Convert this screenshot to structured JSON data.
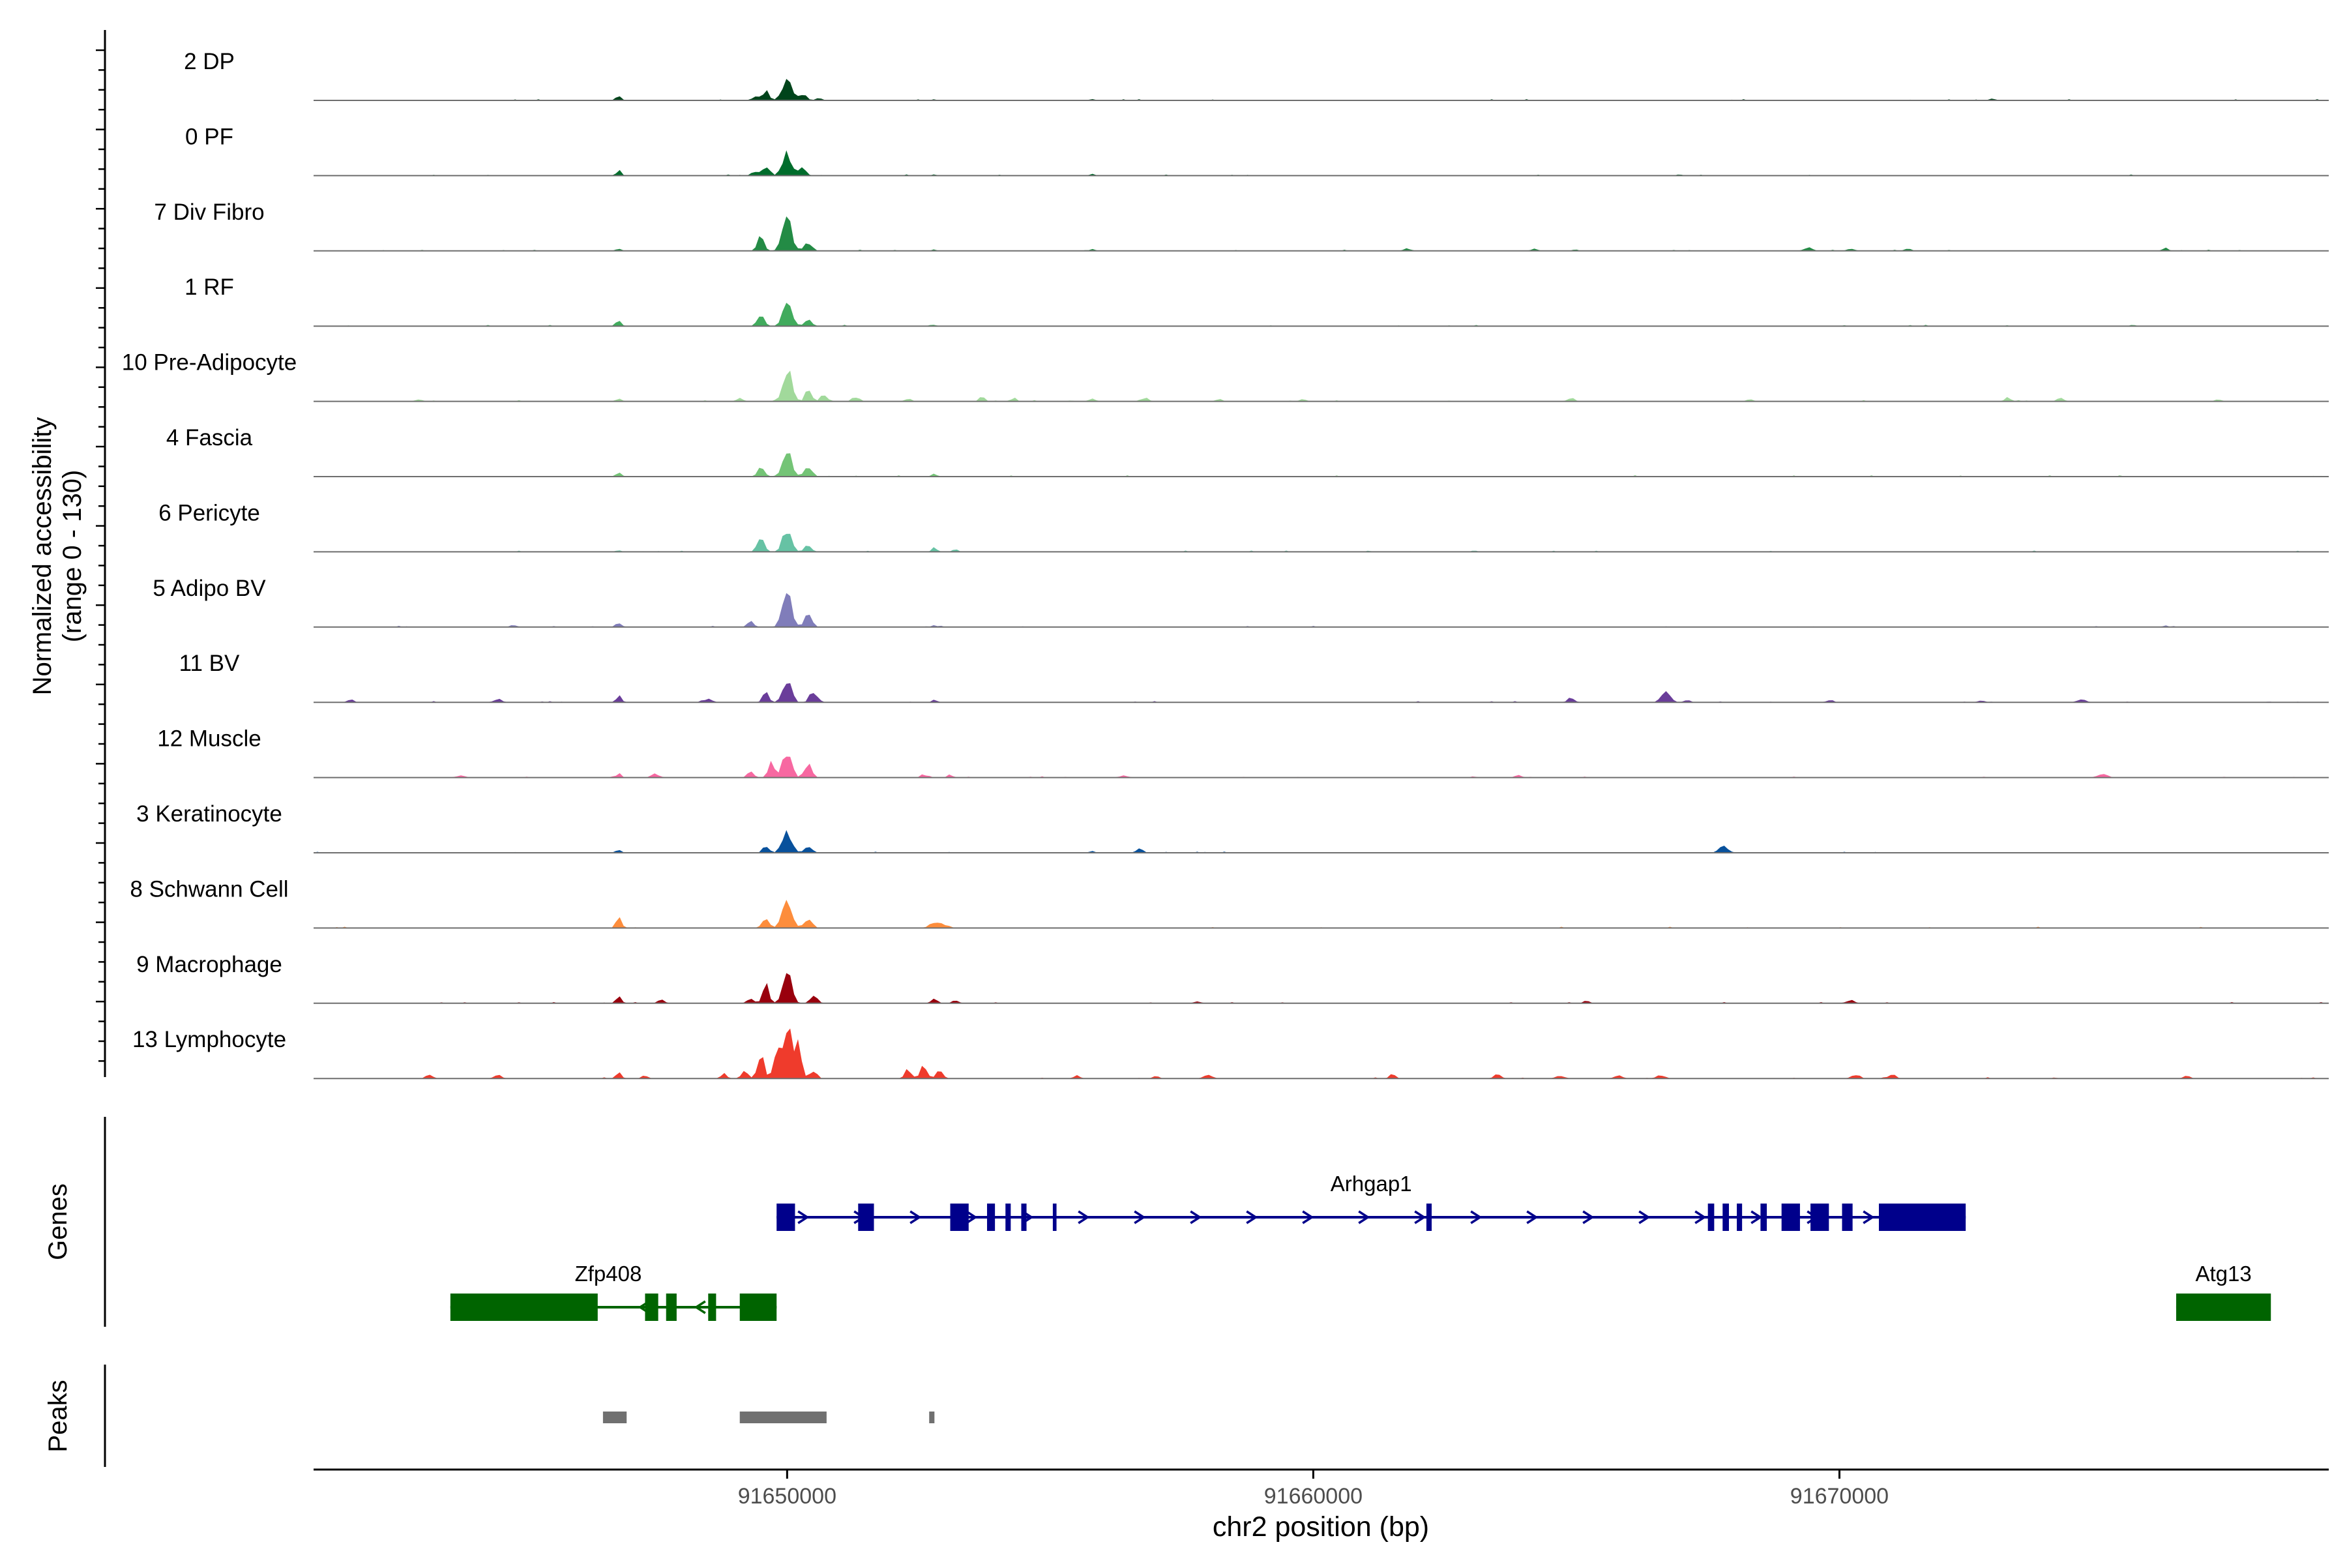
{
  "chart_data": {
    "type": "area",
    "title": "",
    "xlabel": "chr2 position (bp)",
    "ylabel_line1": "Normalized accessibility",
    "ylabel_line2": "(range 0 - 130)",
    "ylim": [
      0,
      130
    ],
    "xlim": [
      91641000,
      91679300
    ],
    "x_ticks": [
      {
        "value": 91650000,
        "label": "91650000"
      },
      {
        "value": 91660000,
        "label": "91660000"
      },
      {
        "value": 91670000,
        "label": "91670000"
      }
    ],
    "series": [
      {
        "name": "2 DP",
        "color": "#00441b",
        "peaks": [
          [
            91646800,
            0.06,
            50
          ],
          [
            91649400,
            0.04,
            80
          ],
          [
            91649600,
            0.13,
            60
          ],
          [
            91650000,
            0.3,
            90
          ],
          [
            91650300,
            0.07,
            70
          ],
          [
            91650600,
            0.03,
            60
          ],
          [
            91652800,
            0.02,
            40
          ],
          [
            91655800,
            0.02,
            50
          ],
          [
            91672900,
            0.02,
            60
          ]
        ]
      },
      {
        "name": "0 PF",
        "color": "#006d2c",
        "peaks": [
          [
            91646800,
            0.06,
            50
          ],
          [
            91649400,
            0.04,
            70
          ],
          [
            91649600,
            0.14,
            60
          ],
          [
            91650000,
            0.29,
            90
          ],
          [
            91650300,
            0.08,
            70
          ],
          [
            91652800,
            0.02,
            40
          ],
          [
            91655800,
            0.02,
            50
          ]
        ]
      },
      {
        "name": "7 Div Fibro",
        "color": "#238b45",
        "peaks": [
          [
            91646800,
            0.03,
            50
          ],
          [
            91649500,
            0.2,
            60
          ],
          [
            91650000,
            0.38,
            90
          ],
          [
            91650400,
            0.1,
            70
          ],
          [
            91652800,
            0.02,
            40
          ],
          [
            91655800,
            0.03,
            50
          ],
          [
            91661800,
            0.03,
            70
          ],
          [
            91664200,
            0.03,
            60
          ],
          [
            91669400,
            0.04,
            80
          ],
          [
            91670200,
            0.03,
            60
          ],
          [
            91671300,
            0.03,
            60
          ],
          [
            91676200,
            0.04,
            50
          ]
        ]
      },
      {
        "name": "1 RF",
        "color": "#41ab5d",
        "peaks": [
          [
            91646800,
            0.06,
            50
          ],
          [
            91649500,
            0.16,
            60
          ],
          [
            91650000,
            0.28,
            90
          ],
          [
            91650400,
            0.08,
            70
          ],
          [
            91652800,
            0.02,
            40
          ]
        ]
      },
      {
        "name": "10 Pre-Adipocyte",
        "color": "#a1d99b",
        "peaks": [
          [
            91643000,
            0.03,
            60
          ],
          [
            91646800,
            0.03,
            60
          ],
          [
            91649100,
            0.04,
            60
          ],
          [
            91650000,
            0.42,
            80
          ],
          [
            91650400,
            0.14,
            60
          ],
          [
            91650700,
            0.1,
            60
          ],
          [
            91651300,
            0.06,
            60
          ],
          [
            91652300,
            0.04,
            60
          ],
          [
            91653700,
            0.07,
            50
          ],
          [
            91654300,
            0.04,
            60
          ],
          [
            91655800,
            0.04,
            60
          ],
          [
            91656800,
            0.05,
            60
          ],
          [
            91658200,
            0.03,
            60
          ],
          [
            91659800,
            0.03,
            60
          ],
          [
            91664900,
            0.05,
            60
          ],
          [
            91668300,
            0.03,
            60
          ],
          [
            91673200,
            0.05,
            60
          ],
          [
            91674200,
            0.04,
            60
          ],
          [
            91677200,
            0.03,
            60
          ]
        ]
      },
      {
        "name": "4 Fascia",
        "color": "#74c476",
        "peaks": [
          [
            91646800,
            0.06,
            50
          ],
          [
            91649500,
            0.16,
            60
          ],
          [
            91650000,
            0.31,
            90
          ],
          [
            91650400,
            0.12,
            70
          ],
          [
            91652800,
            0.04,
            50
          ]
        ]
      },
      {
        "name": "6 Pericyte",
        "color": "#66c2a4",
        "peaks": [
          [
            91646800,
            0.02,
            50
          ],
          [
            91649500,
            0.22,
            60
          ],
          [
            91650000,
            0.3,
            80
          ],
          [
            91650400,
            0.08,
            70
          ],
          [
            91652800,
            0.05,
            50
          ],
          [
            91653200,
            0.03,
            50
          ]
        ]
      },
      {
        "name": "5 Adipo BV",
        "color": "#807dba",
        "peaks": [
          [
            91644800,
            0.03,
            60
          ],
          [
            91646800,
            0.06,
            50
          ],
          [
            91649300,
            0.08,
            60
          ],
          [
            91650000,
            0.4,
            90
          ],
          [
            91650400,
            0.16,
            70
          ],
          [
            91652800,
            0.03,
            50
          ],
          [
            91676200,
            0.02,
            50
          ]
        ]
      },
      {
        "name": "11 BV",
        "color": "#6a3d9a",
        "peaks": [
          [
            91641700,
            0.04,
            60
          ],
          [
            91644500,
            0.04,
            80
          ],
          [
            91646800,
            0.09,
            50
          ],
          [
            91648500,
            0.04,
            80
          ],
          [
            91649600,
            0.12,
            60
          ],
          [
            91650000,
            0.3,
            80
          ],
          [
            91650500,
            0.14,
            70
          ],
          [
            91652800,
            0.03,
            50
          ],
          [
            91664900,
            0.06,
            60
          ],
          [
            91666700,
            0.14,
            80
          ],
          [
            91667100,
            0.03,
            60
          ],
          [
            91669800,
            0.03,
            60
          ],
          [
            91672700,
            0.03,
            60
          ],
          [
            91674600,
            0.04,
            80
          ]
        ]
      },
      {
        "name": "12 Muscle",
        "color": "#f768a1",
        "peaks": [
          [
            91643800,
            0.03,
            80
          ],
          [
            91646800,
            0.05,
            50
          ],
          [
            91647500,
            0.05,
            70
          ],
          [
            91649300,
            0.08,
            60
          ],
          [
            91649700,
            0.18,
            60
          ],
          [
            91650000,
            0.36,
            80
          ],
          [
            91650400,
            0.16,
            70
          ],
          [
            91652600,
            0.04,
            60
          ],
          [
            91653100,
            0.03,
            60
          ],
          [
            91656400,
            0.03,
            80
          ],
          [
            91663900,
            0.03,
            60
          ],
          [
            91675000,
            0.05,
            90
          ]
        ]
      },
      {
        "name": "3 Keratinocyte",
        "color": "#08519c",
        "peaks": [
          [
            91646800,
            0.04,
            50
          ],
          [
            91649600,
            0.1,
            60
          ],
          [
            91650000,
            0.28,
            90
          ],
          [
            91650400,
            0.08,
            70
          ],
          [
            91655800,
            0.02,
            60
          ],
          [
            91656700,
            0.05,
            60
          ],
          [
            91667800,
            0.09,
            80
          ]
        ]
      },
      {
        "name": "8 Schwann Cell",
        "color": "#fd8d3c",
        "peaks": [
          [
            91646800,
            0.14,
            50
          ],
          [
            91649600,
            0.13,
            60
          ],
          [
            91650000,
            0.34,
            90
          ],
          [
            91650400,
            0.12,
            70
          ],
          [
            91652800,
            0.06,
            100
          ],
          [
            91653000,
            0.04,
            80
          ]
        ]
      },
      {
        "name": "9 Macrophage",
        "color": "#99000d",
        "peaks": [
          [
            91646800,
            0.1,
            50
          ],
          [
            91647600,
            0.05,
            60
          ],
          [
            91649300,
            0.07,
            60
          ],
          [
            91649600,
            0.22,
            60
          ],
          [
            91650000,
            0.44,
            80
          ],
          [
            91650500,
            0.1,
            70
          ],
          [
            91652800,
            0.05,
            60
          ],
          [
            91653200,
            0.04,
            60
          ],
          [
            91657800,
            0.03,
            60
          ],
          [
            91665200,
            0.03,
            60
          ],
          [
            91670200,
            0.04,
            80
          ]
        ]
      },
      {
        "name": "13 Lymphocyte",
        "color": "#ef3b2c",
        "peaks": [
          [
            91643200,
            0.06,
            60
          ],
          [
            91644500,
            0.05,
            70
          ],
          [
            91646800,
            0.07,
            50
          ],
          [
            91647300,
            0.04,
            60
          ],
          [
            91648800,
            0.06,
            60
          ],
          [
            91649200,
            0.1,
            60
          ],
          [
            91649500,
            0.3,
            60
          ],
          [
            91649800,
            0.42,
            60
          ],
          [
            91650000,
            0.6,
            80
          ],
          [
            91650200,
            0.42,
            70
          ],
          [
            91650500,
            0.1,
            60
          ],
          [
            91652300,
            0.12,
            60
          ],
          [
            91652600,
            0.16,
            60
          ],
          [
            91652900,
            0.12,
            60
          ],
          [
            91655500,
            0.04,
            60
          ],
          [
            91657000,
            0.03,
            60
          ],
          [
            91658000,
            0.04,
            80
          ],
          [
            91661500,
            0.05,
            60
          ],
          [
            91663500,
            0.06,
            60
          ],
          [
            91664700,
            0.04,
            80
          ],
          [
            91665800,
            0.04,
            80
          ],
          [
            91666600,
            0.04,
            80
          ],
          [
            91670300,
            0.04,
            80
          ],
          [
            91671000,
            0.05,
            70
          ],
          [
            91676600,
            0.04,
            60
          ]
        ]
      }
    ],
    "genes": {
      "label": "Genes",
      "items": [
        {
          "name": "Arhgap1",
          "color": "#00008b",
          "strand": "+",
          "row": 0,
          "start": 91649800,
          "end": 91672400,
          "exons": [
            [
              91649800,
              91650150
            ],
            [
              91651350,
              91651650
            ],
            [
              91653100,
              91653450
            ],
            [
              91653800,
              91653950
            ],
            [
              91654150,
              91654250
            ],
            [
              91654450,
              91654550
            ],
            [
              91655050,
              91655120
            ],
            [
              91662150,
              91662250
            ],
            [
              91667500,
              91667620
            ],
            [
              91667780,
              91667900
            ],
            [
              91668050,
              91668150
            ],
            [
              91668500,
              91668620
            ],
            [
              91668900,
              91669250
            ],
            [
              91669450,
              91669800
            ],
            [
              91670050,
              91670250
            ],
            [
              91670750,
              91672400
            ]
          ]
        },
        {
          "name": "Zfp408",
          "color": "#006400",
          "strand": "-",
          "row": 1,
          "start": 91643600,
          "end": 91649800,
          "exons": [
            [
              91643600,
              91646400
            ],
            [
              91647300,
              91647550
            ],
            [
              91647700,
              91647900
            ],
            [
              91648500,
              91648650
            ],
            [
              91649100,
              91649800
            ]
          ]
        },
        {
          "name": "Atg13",
          "color": "#006400",
          "strand": "-",
          "row": 1,
          "start": 91676400,
          "end": 91679300,
          "exons": [
            [
              91676400,
              91678200
            ]
          ]
        }
      ]
    },
    "peaks_track": {
      "label": "Peaks",
      "color": "#707070",
      "regions": [
        [
          91646500,
          91646950
        ],
        [
          91649100,
          91650750
        ],
        [
          91652700,
          91652800
        ]
      ]
    }
  }
}
